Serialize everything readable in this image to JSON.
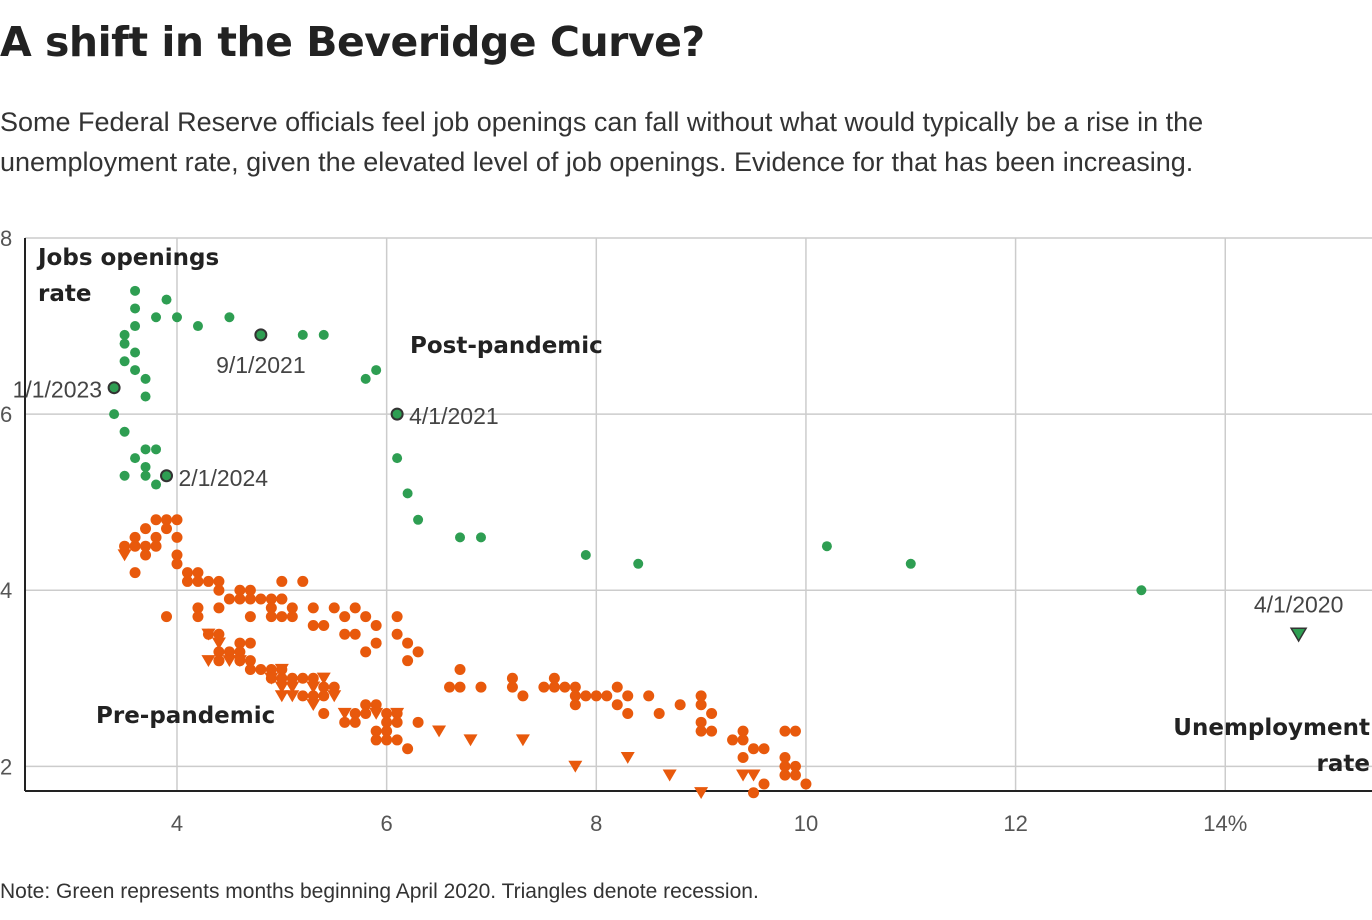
{
  "header": {
    "title": "A shift in the Beveridge Curve?",
    "subtitle": "Some Federal Reserve officials feel job openings can fall without what would typically be a rise in the unemployment rate, given the elevated level of job openings. Evidence for that has been increasing."
  },
  "note": "Note: Green represents months beginning April 2020. Triangles denote recession.",
  "colors": {
    "post": "#2e9e52",
    "pre": "#e8590c",
    "highlight_stroke": "#333333",
    "grid": "#cccccc"
  },
  "chart_data": {
    "type": "scatter",
    "xlabel": "Unemployment rate",
    "ylabel": "Jobs openings rate",
    "xlim": [
      2.55,
      15.4
    ],
    "ylim": [
      1.72,
      8
    ],
    "x_ticks": [
      4,
      6,
      8,
      10,
      12,
      14
    ],
    "x_tick_labels": [
      "4",
      "6",
      "8",
      "10",
      "12",
      "14%"
    ],
    "y_ticks": [
      2,
      4,
      6,
      8
    ],
    "y_tick_labels": [
      "2",
      "4",
      "6",
      "8"
    ],
    "grid": true,
    "series": [
      {
        "name": "Post-pandemic",
        "color": "#2e9e52",
        "points": [
          [
            3.6,
            7.4
          ],
          [
            3.9,
            7.3
          ],
          [
            3.6,
            7.2
          ],
          [
            3.8,
            7.1
          ],
          [
            4.0,
            7.1
          ],
          [
            4.5,
            7.1
          ],
          [
            4.2,
            7.0
          ],
          [
            3.6,
            7.0
          ],
          [
            3.5,
            6.9
          ],
          [
            5.2,
            6.9
          ],
          [
            5.4,
            6.9
          ],
          [
            3.5,
            6.8
          ],
          [
            3.6,
            6.7
          ],
          [
            3.5,
            6.6
          ],
          [
            3.6,
            6.5
          ],
          [
            5.9,
            6.5
          ],
          [
            3.7,
            6.4
          ],
          [
            5.8,
            6.4
          ],
          [
            3.7,
            6.2
          ],
          [
            3.4,
            6.0
          ],
          [
            3.5,
            5.8
          ],
          [
            3.7,
            5.6
          ],
          [
            3.8,
            5.6
          ],
          [
            3.6,
            5.5
          ],
          [
            6.1,
            5.5
          ],
          [
            3.7,
            5.4
          ],
          [
            3.5,
            5.3
          ],
          [
            3.7,
            5.3
          ],
          [
            3.8,
            5.2
          ],
          [
            6.2,
            5.1
          ],
          [
            6.3,
            4.8
          ],
          [
            6.7,
            4.6
          ],
          [
            6.9,
            4.6
          ],
          [
            7.9,
            4.4
          ],
          [
            8.4,
            4.3
          ],
          [
            10.2,
            4.5
          ],
          [
            11.0,
            4.3
          ],
          [
            13.2,
            4.0
          ]
        ]
      },
      {
        "name": "Pre-pandemic",
        "color": "#e8590c",
        "points": [
          [
            3.9,
            4.8
          ],
          [
            3.8,
            4.8
          ],
          [
            4.0,
            4.8
          ],
          [
            3.7,
            4.7
          ],
          [
            3.9,
            4.7
          ],
          [
            3.8,
            4.6
          ],
          [
            4.0,
            4.6
          ],
          [
            3.6,
            4.6
          ],
          [
            3.7,
            4.5
          ],
          [
            3.5,
            4.5
          ],
          [
            3.6,
            4.5
          ],
          [
            3.8,
            4.5
          ],
          [
            3.7,
            4.4
          ],
          [
            4.0,
            4.4
          ],
          [
            4.0,
            4.3
          ],
          [
            3.6,
            4.2
          ],
          [
            4.1,
            4.2
          ],
          [
            4.2,
            4.2
          ],
          [
            4.1,
            4.1
          ],
          [
            4.2,
            4.1
          ],
          [
            4.3,
            4.1
          ],
          [
            4.4,
            4.1
          ],
          [
            4.4,
            4.0
          ],
          [
            5.0,
            4.1
          ],
          [
            5.2,
            4.1
          ],
          [
            4.6,
            4.0
          ],
          [
            4.7,
            4.0
          ],
          [
            5.0,
            3.9
          ],
          [
            4.5,
            3.9
          ],
          [
            4.6,
            3.9
          ],
          [
            4.7,
            3.9
          ],
          [
            4.8,
            3.9
          ],
          [
            4.9,
            3.9
          ],
          [
            5.0,
            3.9
          ],
          [
            5.1,
            3.8
          ],
          [
            5.3,
            3.8
          ],
          [
            5.5,
            3.8
          ],
          [
            5.7,
            3.8
          ],
          [
            4.2,
            3.8
          ],
          [
            4.4,
            3.8
          ],
          [
            4.9,
            3.8
          ],
          [
            3.9,
            3.7
          ],
          [
            4.2,
            3.7
          ],
          [
            4.7,
            3.7
          ],
          [
            4.9,
            3.7
          ],
          [
            5.0,
            3.7
          ],
          [
            5.1,
            3.7
          ],
          [
            5.6,
            3.7
          ],
          [
            5.8,
            3.7
          ],
          [
            6.1,
            3.7
          ],
          [
            5.3,
            3.6
          ],
          [
            5.4,
            3.6
          ],
          [
            5.9,
            3.6
          ],
          [
            5.6,
            3.5
          ],
          [
            5.7,
            3.5
          ],
          [
            6.1,
            3.5
          ],
          [
            4.4,
            3.5
          ],
          [
            4.3,
            3.5
          ],
          [
            6.2,
            3.4
          ],
          [
            4.6,
            3.4
          ],
          [
            4.7,
            3.4
          ],
          [
            5.9,
            3.4
          ],
          [
            4.6,
            3.3
          ],
          [
            5.8,
            3.3
          ],
          [
            6.3,
            3.3
          ],
          [
            4.4,
            3.3
          ],
          [
            4.5,
            3.3
          ],
          [
            4.4,
            3.2
          ],
          [
            4.6,
            3.2
          ],
          [
            4.7,
            3.2
          ],
          [
            6.2,
            3.2
          ],
          [
            4.4,
            3.2
          ],
          [
            4.7,
            3.1
          ],
          [
            4.8,
            3.1
          ],
          [
            6.7,
            3.1
          ],
          [
            4.9,
            3.1
          ],
          [
            5.0,
            3.1
          ],
          [
            5.2,
            3.0
          ],
          [
            5.3,
            3.0
          ],
          [
            4.9,
            3.0
          ],
          [
            5.0,
            3.0
          ],
          [
            5.1,
            3.0
          ],
          [
            7.2,
            3.0
          ],
          [
            7.6,
            3.0
          ],
          [
            5.4,
            2.9
          ],
          [
            5.5,
            2.9
          ],
          [
            6.6,
            2.9
          ],
          [
            6.7,
            2.9
          ],
          [
            6.9,
            2.9
          ],
          [
            7.2,
            2.9
          ],
          [
            7.5,
            2.9
          ],
          [
            7.6,
            2.9
          ],
          [
            7.7,
            2.9
          ],
          [
            7.8,
            2.9
          ],
          [
            8.2,
            2.9
          ],
          [
            5.2,
            2.8
          ],
          [
            5.3,
            2.8
          ],
          [
            5.4,
            2.8
          ],
          [
            7.3,
            2.8
          ],
          [
            7.8,
            2.8
          ],
          [
            7.9,
            2.8
          ],
          [
            8.0,
            2.8
          ],
          [
            8.1,
            2.8
          ],
          [
            8.3,
            2.8
          ],
          [
            8.5,
            2.8
          ],
          [
            9.0,
            2.8
          ],
          [
            7.8,
            2.7
          ],
          [
            8.2,
            2.7
          ],
          [
            8.8,
            2.7
          ],
          [
            9.0,
            2.7
          ],
          [
            5.8,
            2.7
          ],
          [
            5.9,
            2.7
          ],
          [
            5.7,
            2.6
          ],
          [
            5.8,
            2.6
          ],
          [
            6.0,
            2.6
          ],
          [
            6.1,
            2.6
          ],
          [
            5.4,
            2.6
          ],
          [
            8.3,
            2.6
          ],
          [
            8.6,
            2.6
          ],
          [
            9.1,
            2.6
          ],
          [
            5.6,
            2.5
          ],
          [
            5.7,
            2.5
          ],
          [
            6.0,
            2.5
          ],
          [
            6.1,
            2.5
          ],
          [
            6.3,
            2.5
          ],
          [
            9.0,
            2.5
          ],
          [
            9.1,
            2.4
          ],
          [
            9.4,
            2.4
          ],
          [
            9.8,
            2.4
          ],
          [
            9.9,
            2.4
          ],
          [
            6.0,
            2.4
          ],
          [
            5.9,
            2.4
          ],
          [
            9.0,
            2.4
          ],
          [
            5.9,
            2.3
          ],
          [
            6.0,
            2.3
          ],
          [
            6.1,
            2.3
          ],
          [
            9.3,
            2.3
          ],
          [
            9.4,
            2.3
          ],
          [
            9.5,
            2.2
          ],
          [
            9.6,
            2.2
          ],
          [
            6.2,
            2.2
          ],
          [
            9.4,
            2.1
          ],
          [
            9.8,
            2.1
          ],
          [
            9.8,
            2.0
          ],
          [
            9.9,
            2.0
          ],
          [
            9.8,
            1.9
          ],
          [
            9.9,
            1.9
          ],
          [
            9.6,
            1.8
          ],
          [
            10.0,
            1.8
          ],
          [
            9.5,
            1.7
          ]
        ],
        "recession_points": [
          [
            3.5,
            4.4
          ],
          [
            4.3,
            3.5
          ],
          [
            4.4,
            3.4
          ],
          [
            4.3,
            3.2
          ],
          [
            4.5,
            3.2
          ],
          [
            4.6,
            3.2
          ],
          [
            4.9,
            3.0
          ],
          [
            5.0,
            3.1
          ],
          [
            5.0,
            2.9
          ],
          [
            5.1,
            2.9
          ],
          [
            5.4,
            3.0
          ],
          [
            5.3,
            2.9
          ],
          [
            5.5,
            2.8
          ],
          [
            5.3,
            2.7
          ],
          [
            5.6,
            2.6
          ],
          [
            5.0,
            2.8
          ],
          [
            5.1,
            2.8
          ],
          [
            6.1,
            2.6
          ],
          [
            5.9,
            2.6
          ],
          [
            6.5,
            2.4
          ],
          [
            6.8,
            2.3
          ],
          [
            7.3,
            2.3
          ],
          [
            7.8,
            2.0
          ],
          [
            8.3,
            2.1
          ],
          [
            8.7,
            1.9
          ],
          [
            9.0,
            1.7
          ],
          [
            9.4,
            1.9
          ],
          [
            9.5,
            1.9
          ]
        ]
      }
    ],
    "highlighted": [
      {
        "label": "1/1/2023",
        "x": 3.4,
        "y": 6.3,
        "shape": "circle",
        "series": "Post-pandemic"
      },
      {
        "label": "9/1/2021",
        "x": 4.8,
        "y": 6.9,
        "shape": "circle",
        "series": "Post-pandemic"
      },
      {
        "label": "4/1/2021",
        "x": 6.1,
        "y": 6.0,
        "shape": "circle",
        "series": "Post-pandemic"
      },
      {
        "label": "2/1/2024",
        "x": 3.9,
        "y": 5.3,
        "shape": "circle",
        "series": "Post-pandemic"
      },
      {
        "label": "4/1/2020",
        "x": 14.7,
        "y": 3.5,
        "shape": "triangle",
        "series": "Post-pandemic"
      }
    ],
    "annotations": [
      {
        "text": "Post-pandemic",
        "x": 6.15,
        "y": 6.8
      },
      {
        "text": "Pre-pandemic",
        "x": 3.0,
        "y": 2.55
      }
    ]
  }
}
